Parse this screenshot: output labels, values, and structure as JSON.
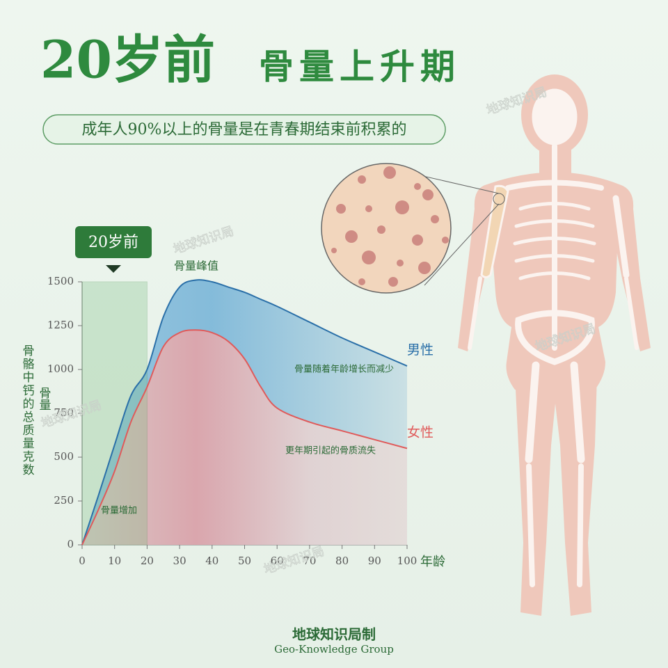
{
  "chart_data": {
    "type": "line",
    "title_main": "20岁前",
    "title_sub": "骨量上升期",
    "subtitle": "成年人90%以上的骨量是在青春期结束前积累的",
    "badge": "20岁前",
    "highlight_range": [
      0,
      20
    ],
    "y_label": "骨骼中钙的总质量克数",
    "y_label_short": "骨量",
    "x_label": "年龄",
    "x": [
      0,
      5,
      10,
      15,
      20,
      25,
      30,
      35,
      40,
      45,
      50,
      55,
      60,
      70,
      80,
      90,
      100
    ],
    "series": [
      {
        "name": "男性",
        "color": "#2a6fa8",
        "values": [
          0,
          280,
          570,
          850,
          1000,
          1300,
          1470,
          1510,
          1500,
          1470,
          1440,
          1400,
          1360,
          1270,
          1180,
          1100,
          1020
        ]
      },
      {
        "name": "女性",
        "color": "#e05a5a",
        "values": [
          0,
          200,
          420,
          700,
          900,
          1130,
          1210,
          1225,
          1210,
          1160,
          1060,
          900,
          780,
          700,
          650,
          600,
          550
        ]
      }
    ],
    "xlim": [
      0,
      100
    ],
    "xticks": [
      0,
      10,
      20,
      30,
      40,
      50,
      60,
      70,
      80,
      90,
      100
    ],
    "ylim": [
      0,
      1500
    ],
    "yticks": [
      0,
      250,
      500,
      750,
      1000,
      1250,
      1500
    ],
    "annotations": {
      "peak": "骨量峰值",
      "male_decline": "骨量随着年龄增长而减少",
      "menopause": "更年期引起的骨质流失",
      "increase": "骨量增加"
    },
    "watermark": "地球知识局",
    "footer": "地球知识局制",
    "footer_en": "Geo-Knowledge Group"
  }
}
